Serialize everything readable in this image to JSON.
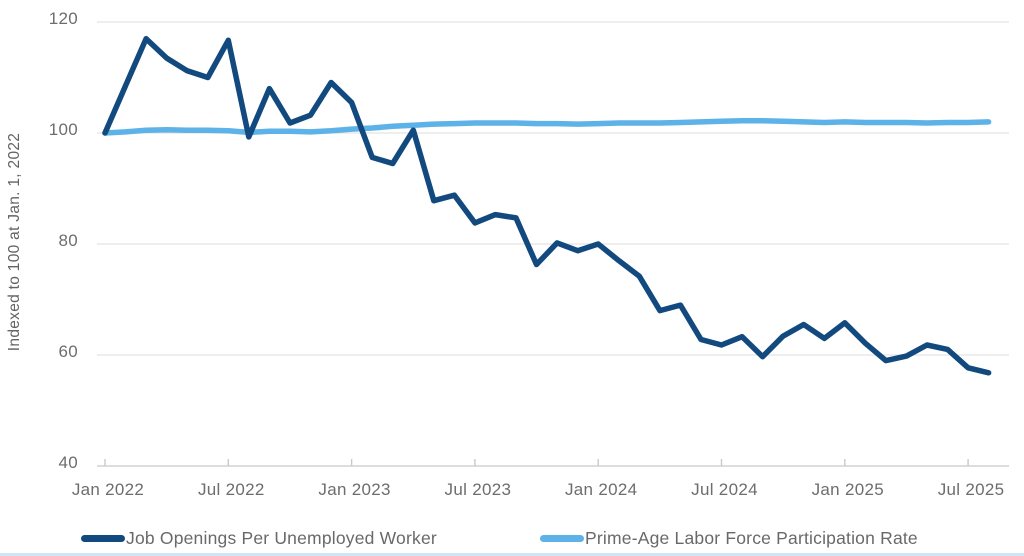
{
  "chart": {
    "y_axis_title": "Indexed to 100 at Jan. 1, 2022",
    "grid_color": "#e3e3e3",
    "axis_color": "#d2d2d2",
    "text_color": "#6d6d6d",
    "bottom_border_color": "#cfe5f6"
  },
  "chart_data": {
    "type": "line",
    "title": "",
    "xlabel": "",
    "ylabel": "Indexed to 100 at Jan. 1, 2022",
    "ylim": [
      40,
      120
    ],
    "y_ticks": [
      120,
      100,
      80,
      60,
      40
    ],
    "x_tick_labels": [
      "Jan 2022",
      "Jul 2022",
      "Jan 2023",
      "Jul 2023",
      "Jan 2024",
      "Jul 2024",
      "Jan 2025",
      "Jul 2025"
    ],
    "grid": "horizontal",
    "legend_position": "bottom",
    "x": [
      "2022-01",
      "2022-02",
      "2022-03",
      "2022-04",
      "2022-05",
      "2022-06",
      "2022-07",
      "2022-08",
      "2022-09",
      "2022-10",
      "2022-11",
      "2022-12",
      "2023-01",
      "2023-02",
      "2023-03",
      "2023-04",
      "2023-05",
      "2023-06",
      "2023-07",
      "2023-08",
      "2023-09",
      "2023-10",
      "2023-11",
      "2023-12",
      "2024-01",
      "2024-02",
      "2024-03",
      "2024-04",
      "2024-05",
      "2024-06",
      "2024-07",
      "2024-08",
      "2024-09",
      "2024-10",
      "2024-11",
      "2024-12",
      "2025-01",
      "2025-02",
      "2025-03",
      "2025-04",
      "2025-05",
      "2025-06",
      "2025-07",
      "2025-08"
    ],
    "series": [
      {
        "name": "Job Openings Per Unemployed Worker",
        "color": "#12497e",
        "values": [
          100,
          108.5,
          117,
          113.5,
          111.2,
          110,
          116.7,
          99.3,
          108,
          101.8,
          103.2,
          109.1,
          105.5,
          95.6,
          94.5,
          100.5,
          87.8,
          88.8,
          83.8,
          85.3,
          84.7,
          76.3,
          80.2,
          78.8,
          80,
          77,
          74.2,
          68,
          69,
          62.8,
          61.8,
          63.3,
          59.7,
          63.4,
          65.5,
          63,
          65.8,
          62.1,
          59,
          59.8,
          61.8,
          61,
          57.7,
          56.8
        ]
      },
      {
        "name": "Prime-Age Labor Force Participation Rate",
        "color": "#5db2e7",
        "values": [
          100,
          100.2,
          100.5,
          100.6,
          100.5,
          100.5,
          100.4,
          100.1,
          100.3,
          100.3,
          100.2,
          100.4,
          100.7,
          100.9,
          101.2,
          101.4,
          101.6,
          101.7,
          101.8,
          101.8,
          101.8,
          101.7,
          101.7,
          101.6,
          101.7,
          101.8,
          101.8,
          101.8,
          101.9,
          102,
          102.1,
          102.2,
          102.2,
          102.1,
          102,
          101.9,
          102,
          101.9,
          101.9,
          101.9,
          101.8,
          101.9,
          101.9,
          102
        ]
      }
    ]
  }
}
